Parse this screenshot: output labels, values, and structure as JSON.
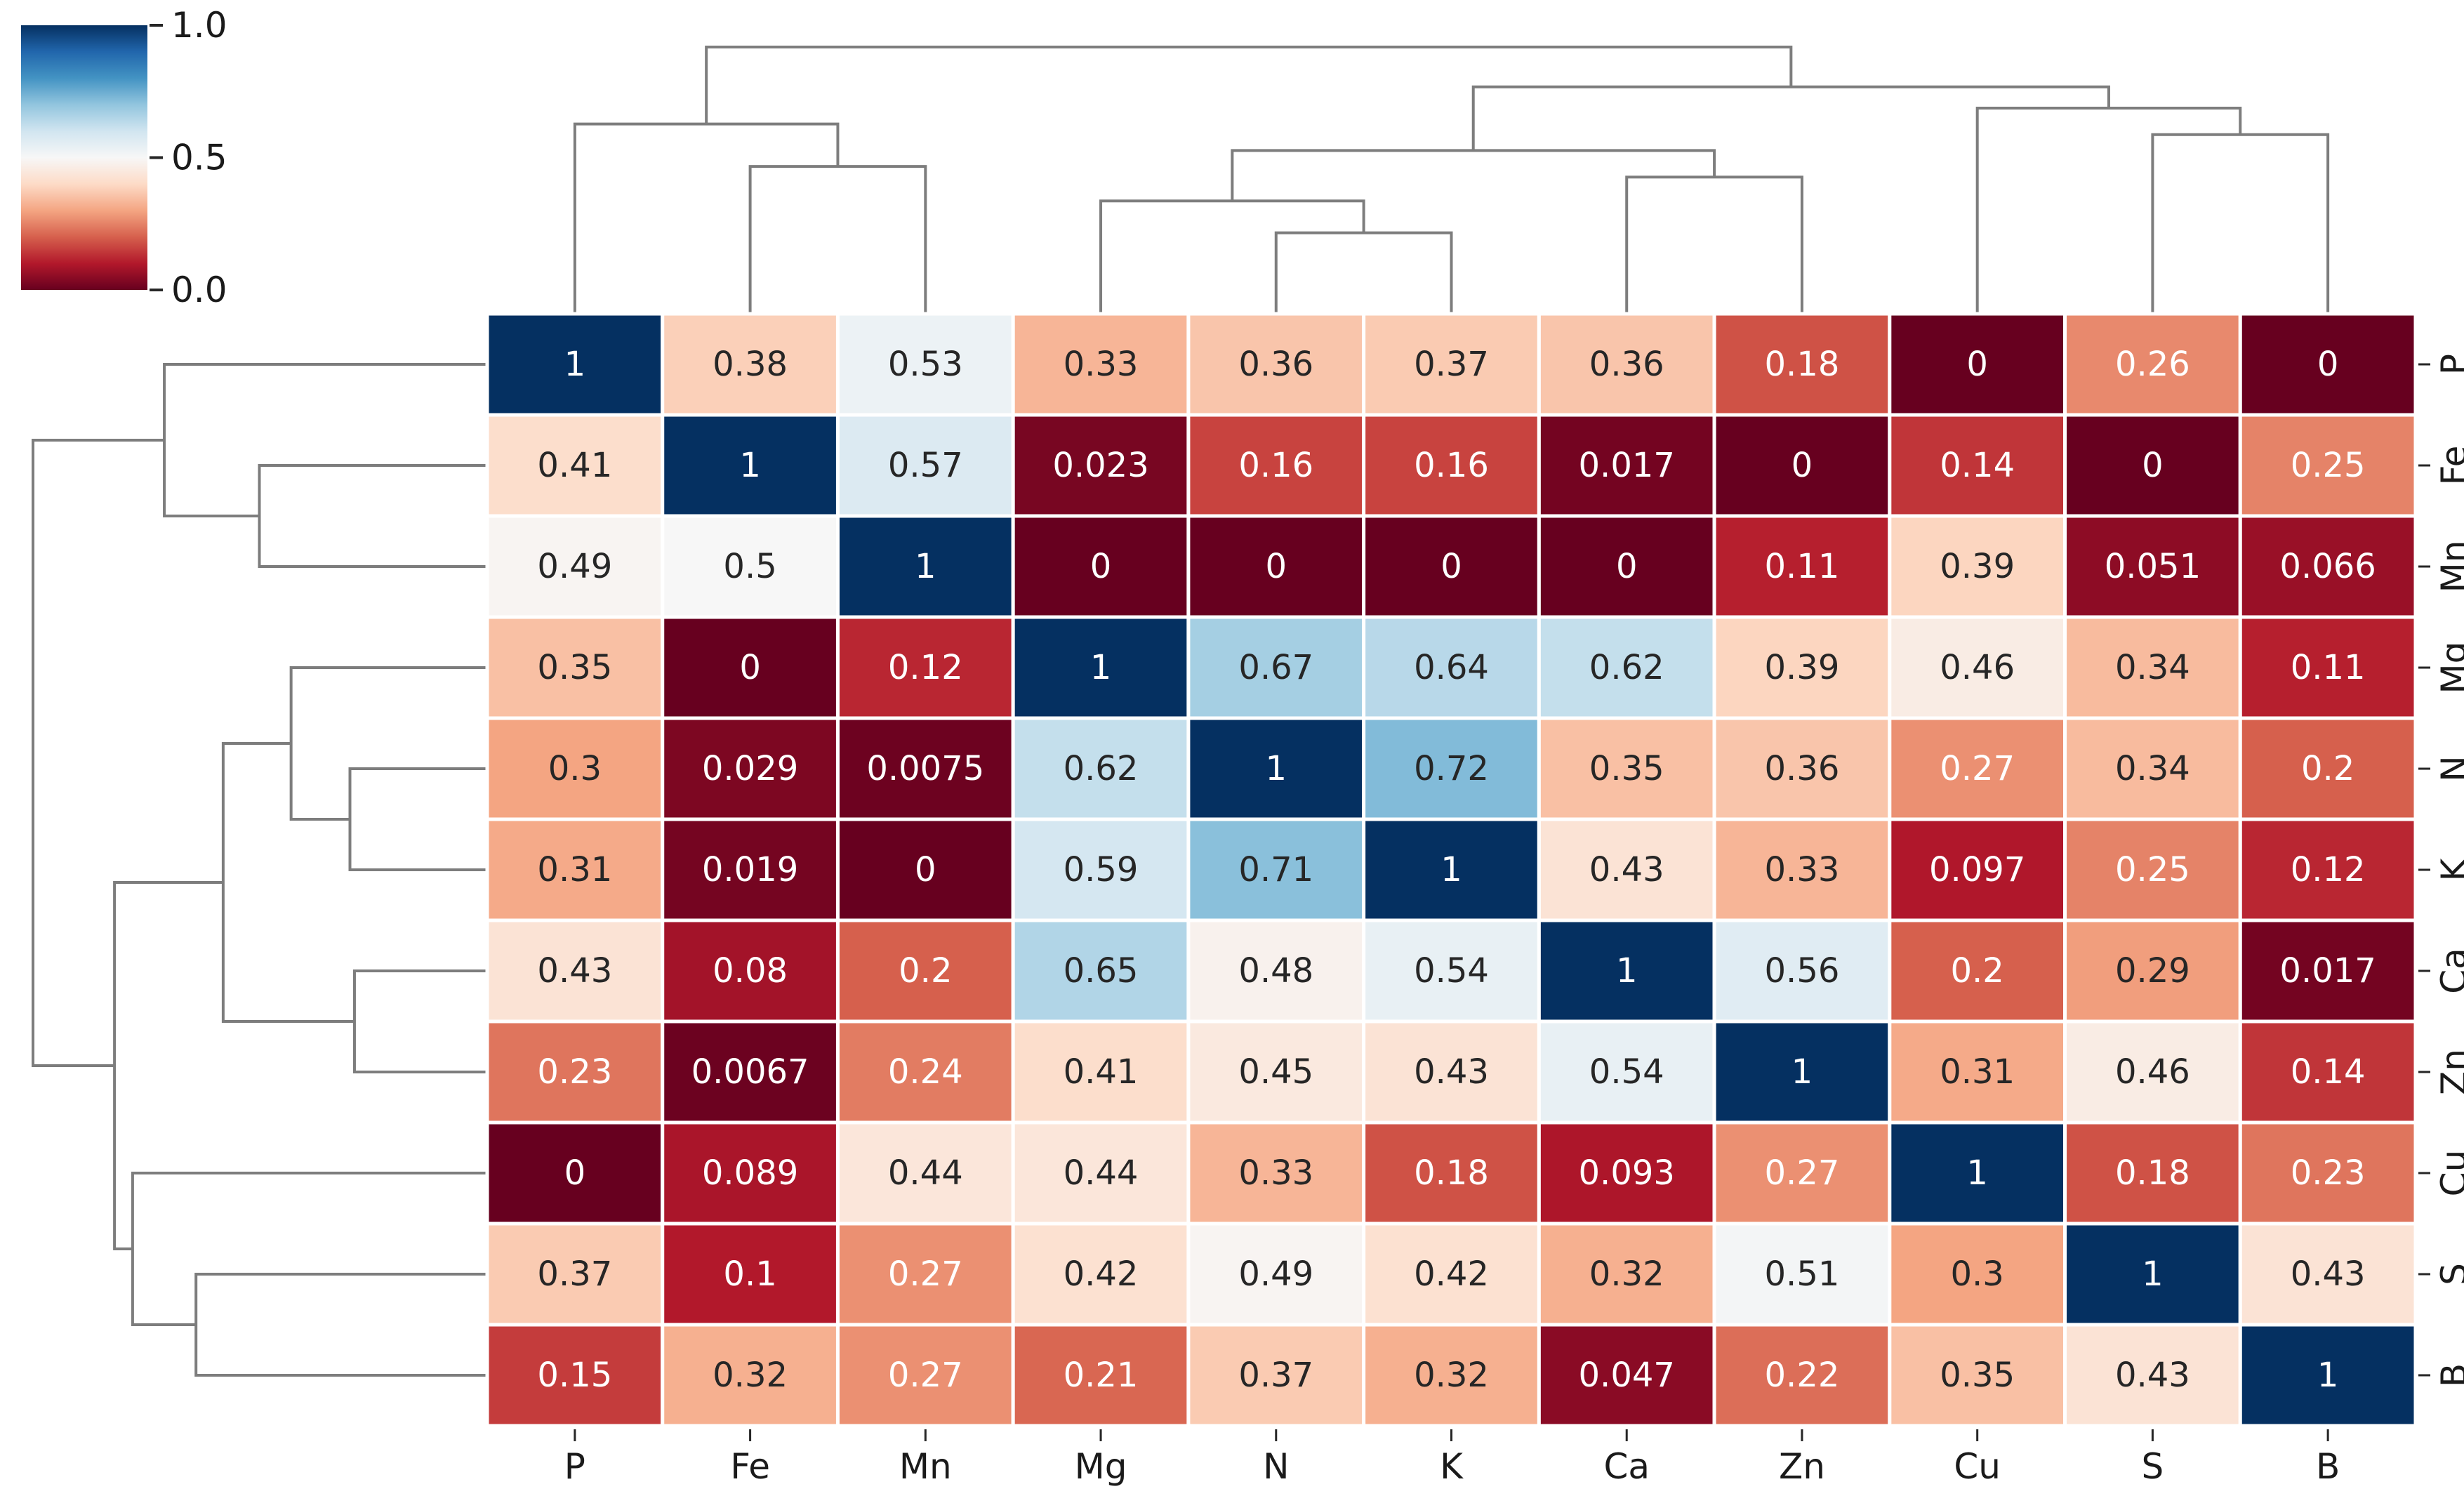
{
  "chart_data": {
    "type": "heatmap",
    "subtype": "clustermap-with-dendrograms",
    "title": "",
    "xlabel": "",
    "ylabel": "",
    "col_labels": [
      "P",
      "Fe",
      "Mn",
      "Mg",
      "N",
      "K",
      "Ca",
      "Zn",
      "Cu",
      "S",
      "B"
    ],
    "row_labels": [
      "P",
      "Fe",
      "Mn",
      "Mg",
      "N",
      "K",
      "Ca",
      "Zn",
      "Cu",
      "S",
      "B"
    ],
    "values": [
      [
        "1",
        "0.38",
        "0.53",
        "0.33",
        "0.36",
        "0.37",
        "0.36",
        "0.18",
        "0",
        "0.26",
        "0"
      ],
      [
        "0.41",
        "1",
        "0.57",
        "0.023",
        "0.16",
        "0.16",
        "0.017",
        "0",
        "0.14",
        "0",
        "0.25"
      ],
      [
        "0.49",
        "0.5",
        "1",
        "0",
        "0",
        "0",
        "0",
        "0.11",
        "0.39",
        "0.051",
        "0.066"
      ],
      [
        "0.35",
        "0",
        "0.12",
        "1",
        "0.67",
        "0.64",
        "0.62",
        "0.39",
        "0.46",
        "0.34",
        "0.11"
      ],
      [
        "0.3",
        "0.029",
        "0.0075",
        "0.62",
        "1",
        "0.72",
        "0.35",
        "0.36",
        "0.27",
        "0.34",
        "0.2"
      ],
      [
        "0.31",
        "0.019",
        "0",
        "0.59",
        "0.71",
        "1",
        "0.43",
        "0.33",
        "0.097",
        "0.25",
        "0.12"
      ],
      [
        "0.43",
        "0.08",
        "0.2",
        "0.65",
        "0.48",
        "0.54",
        "1",
        "0.56",
        "0.2",
        "0.29",
        "0.017"
      ],
      [
        "0.23",
        "0.0067",
        "0.24",
        "0.41",
        "0.45",
        "0.43",
        "0.54",
        "1",
        "0.31",
        "0.46",
        "0.14"
      ],
      [
        "0",
        "0.089",
        "0.44",
        "0.44",
        "0.33",
        "0.18",
        "0.093",
        "0.27",
        "1",
        "0.18",
        "0.23"
      ],
      [
        "0.37",
        "0.1",
        "0.27",
        "0.42",
        "0.49",
        "0.42",
        "0.32",
        "0.51",
        "0.3",
        "1",
        "0.43"
      ],
      [
        "0.15",
        "0.32",
        "0.27",
        "0.21",
        "0.37",
        "0.32",
        "0.047",
        "0.22",
        "0.35",
        "0.43",
        "1"
      ]
    ],
    "vmin": 0,
    "vmax": 1,
    "colormap": "RdBu",
    "colormap_stops": [
      [
        0.0,
        "#67001f"
      ],
      [
        0.1,
        "#b2182b"
      ],
      [
        0.2,
        "#d6604d"
      ],
      [
        0.3,
        "#f4a582"
      ],
      [
        0.4,
        "#fddbc7"
      ],
      [
        0.5,
        "#f7f7f7"
      ],
      [
        0.6,
        "#d1e5f0"
      ],
      [
        0.7,
        "#92c5de"
      ],
      [
        0.8,
        "#4393c3"
      ],
      [
        0.9,
        "#2166ac"
      ],
      [
        1.0,
        "#053061"
      ]
    ],
    "colorbar": {
      "position": "top-left",
      "tick_labels": [
        "1.0",
        "0.5",
        "0.0"
      ],
      "tick_values": [
        1.0,
        0.5,
        0.0
      ]
    },
    "grid": false,
    "gridline_color": "#ffffff",
    "annotation_dark_text_color": "#262626",
    "annotation_light_text_color": "#ffffff",
    "dendrogram_line_color": "#7d7d7d",
    "tick_color": "#262626",
    "label_color": "#1a1a1a",
    "col_dendrogram": {
      "h": 1.0,
      "c": [
        {
          "h": 0.71,
          "c": [
            {
              "leaf": "P"
            },
            {
              "h": 0.55,
              "c": [
                {
                  "leaf": "Fe"
                },
                {
                  "leaf": "Mn"
                }
              ]
            }
          ]
        },
        {
          "h": 0.85,
          "c": [
            {
              "h": 0.61,
              "c": [
                {
                  "h": 0.42,
                  "c": [
                    {
                      "leaf": "Mg"
                    },
                    {
                      "h": 0.3,
                      "c": [
                        {
                          "leaf": "N"
                        },
                        {
                          "leaf": "K"
                        }
                      ]
                    }
                  ]
                },
                {
                  "h": 0.51,
                  "c": [
                    {
                      "leaf": "Ca"
                    },
                    {
                      "leaf": "Zn"
                    }
                  ]
                }
              ]
            },
            {
              "h": 0.77,
              "c": [
                {
                  "leaf": "Cu"
                },
                {
                  "h": 0.67,
                  "c": [
                    {
                      "leaf": "S"
                    },
                    {
                      "leaf": "B"
                    }
                  ]
                }
              ]
            }
          ]
        }
      ]
    },
    "row_dendrogram": {
      "h": 1.0,
      "c": [
        {
          "h": 0.71,
          "c": [
            {
              "leaf": "P"
            },
            {
              "h": 0.5,
              "c": [
                {
                  "leaf": "Fe"
                },
                {
                  "leaf": "Mn"
                }
              ]
            }
          ]
        },
        {
          "h": 0.82,
          "c": [
            {
              "h": 0.58,
              "c": [
                {
                  "h": 0.43,
                  "c": [
                    {
                      "leaf": "Mg"
                    },
                    {
                      "h": 0.3,
                      "c": [
                        {
                          "leaf": "N"
                        },
                        {
                          "leaf": "K"
                        }
                      ]
                    }
                  ]
                },
                {
                  "h": 0.29,
                  "c": [
                    {
                      "leaf": "Ca"
                    },
                    {
                      "leaf": "Zn"
                    }
                  ]
                }
              ]
            },
            {
              "h": 0.78,
              "c": [
                {
                  "leaf": "Cu"
                },
                {
                  "h": 0.64,
                  "c": [
                    {
                      "leaf": "S"
                    },
                    {
                      "leaf": "B"
                    }
                  ]
                }
              ]
            }
          ]
        }
      ]
    }
  }
}
